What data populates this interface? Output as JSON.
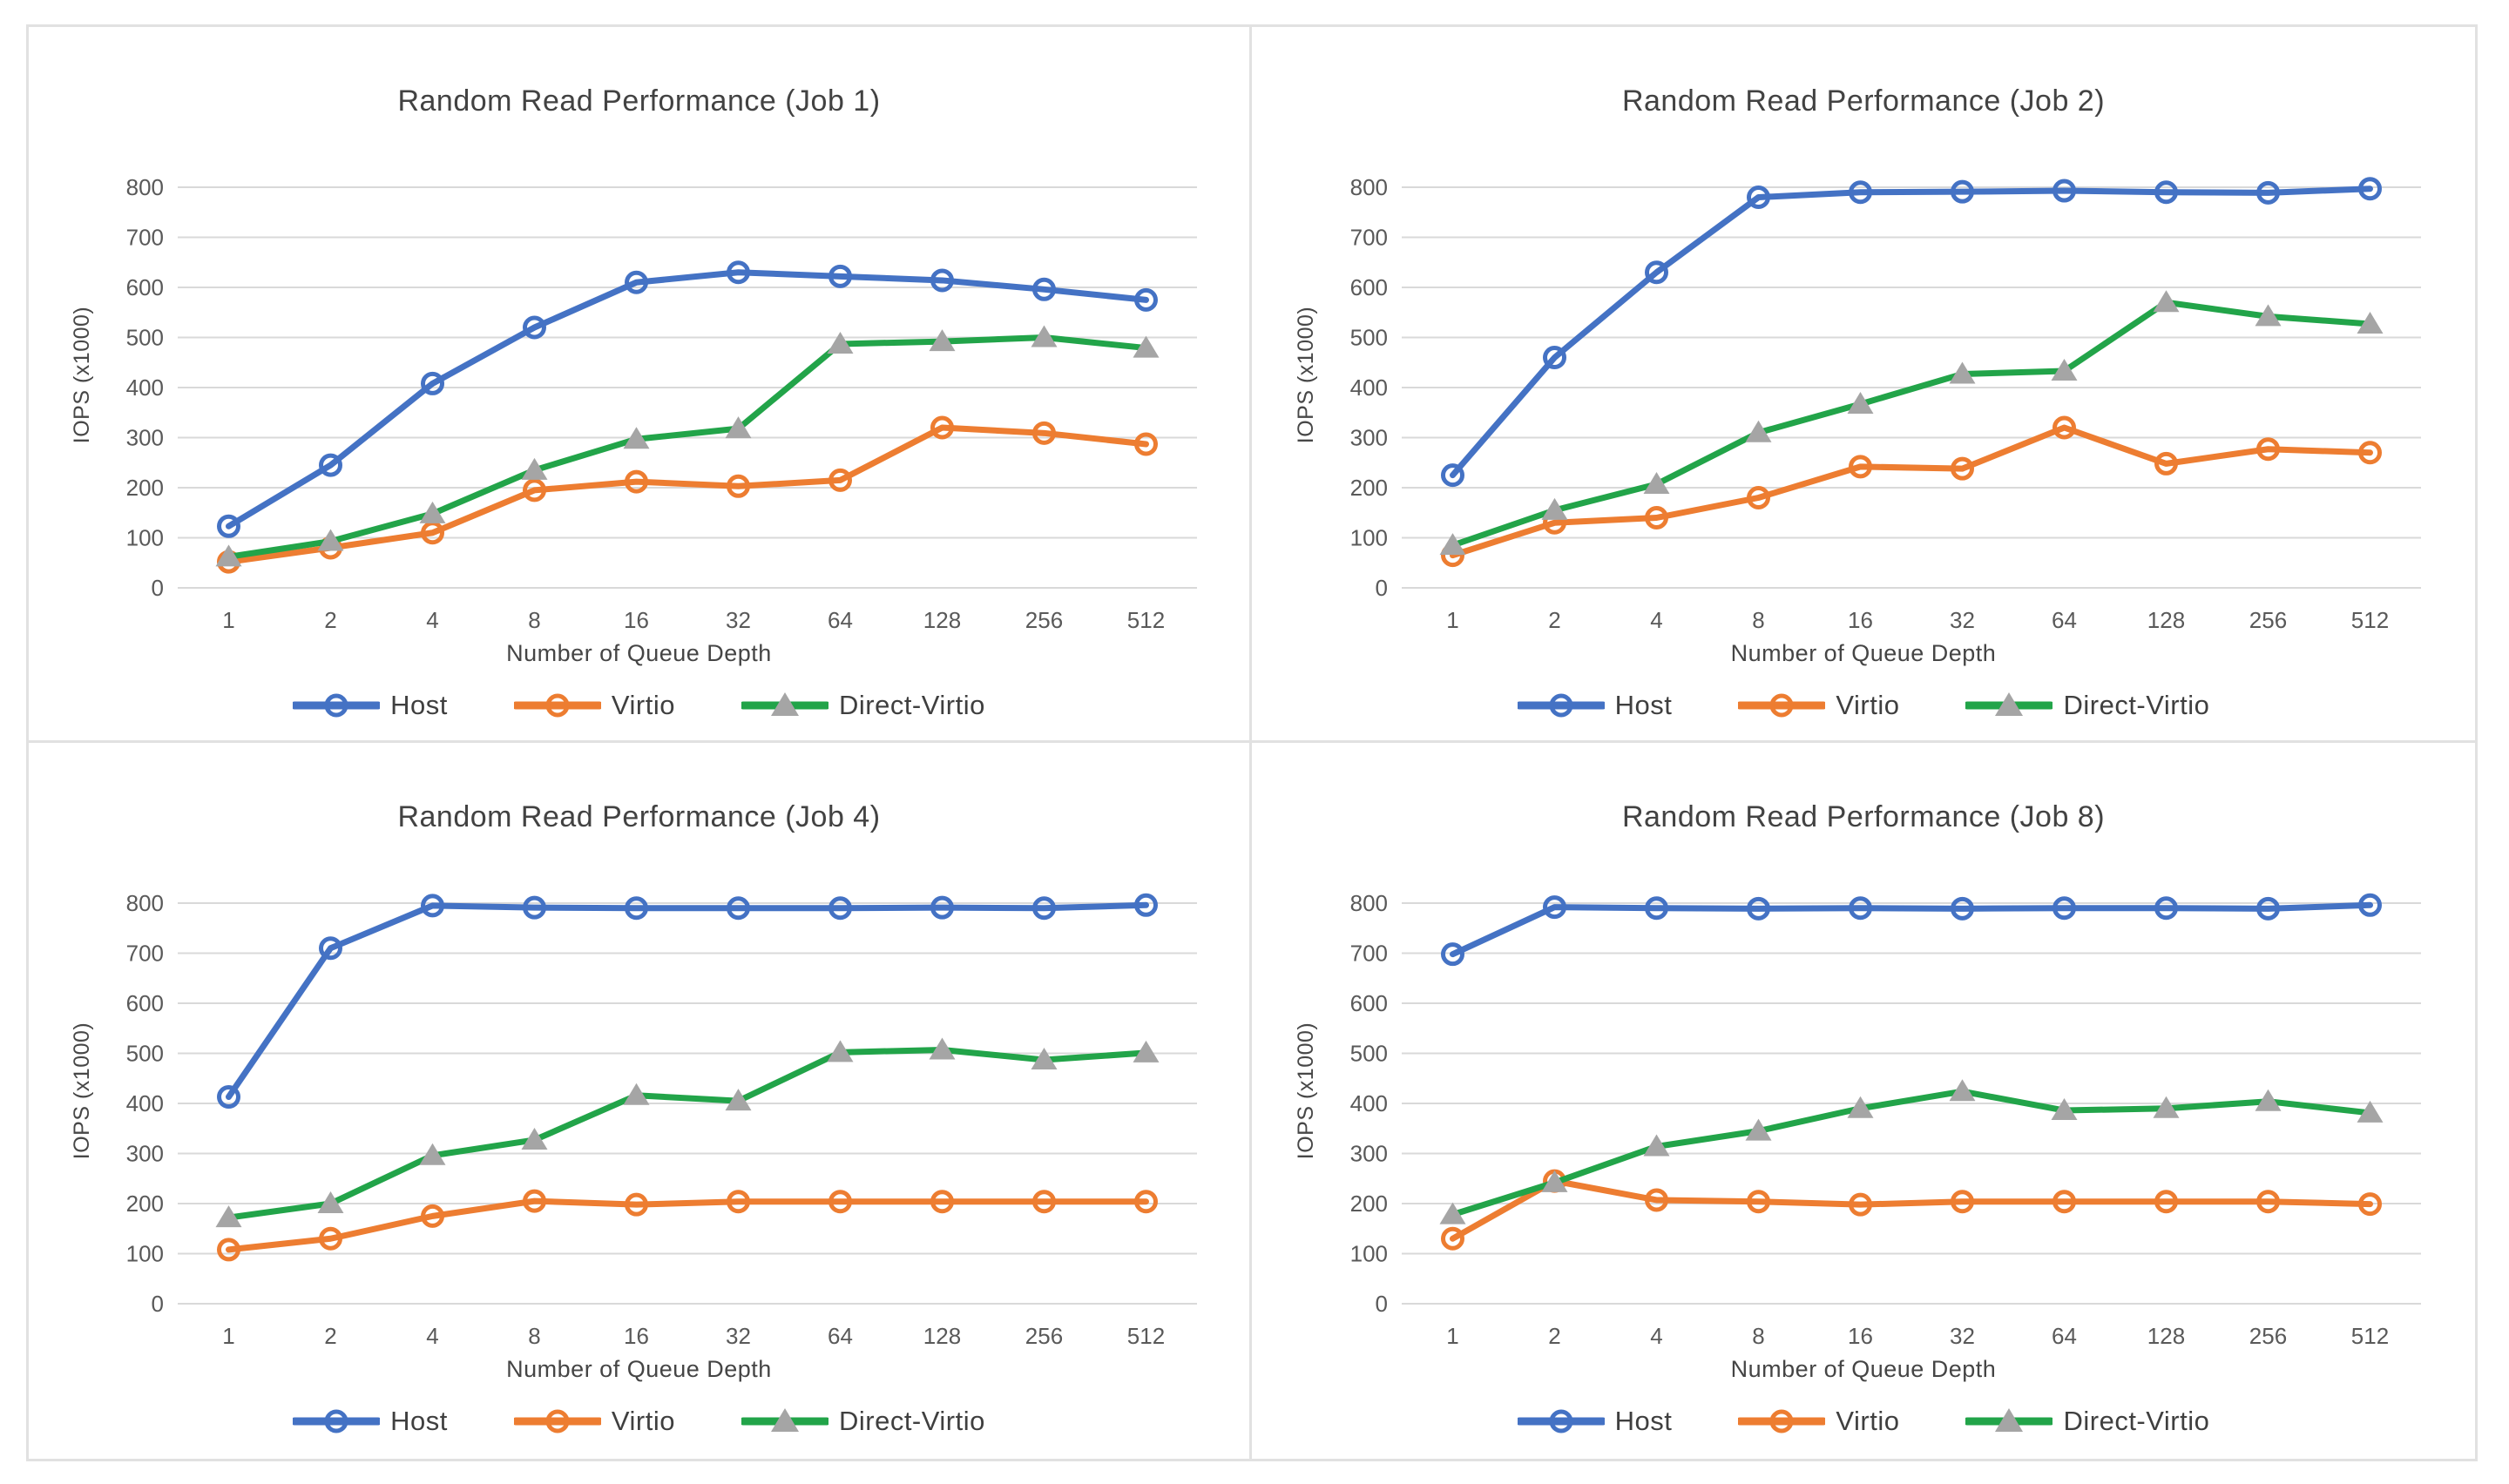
{
  "page": {
    "background": "#ffffff",
    "frame_color": "#e1e1e1",
    "gridline_color": "#d9d9d9",
    "tick_label_color": "#595959",
    "title_color": "#424242"
  },
  "chart_data": [
    {
      "type": "line",
      "title": "Random Read Performance (Job 1)",
      "xlabel": "Number of Queue Depth",
      "ylabel": "IOPS (x1000)",
      "categories": [
        "1",
        "2",
        "4",
        "8",
        "16",
        "32",
        "64",
        "128",
        "256",
        "512"
      ],
      "ylim": [
        0,
        800
      ],
      "ytick_step": 100,
      "grid": true,
      "legend_position": "bottom",
      "series": [
        {
          "name": "Host",
          "color": "#4472C4",
          "marker": "circle",
          "marker_color": "#4472C4",
          "values": [
            123,
            245,
            408,
            520,
            610,
            630,
            622,
            614,
            596,
            575
          ]
        },
        {
          "name": "Virtio",
          "color": "#ED7D31",
          "marker": "circle",
          "marker_color": "#ED7D31",
          "values": [
            52,
            80,
            110,
            195,
            212,
            203,
            215,
            320,
            309,
            287
          ]
        },
        {
          "name": "Direct-Virtio",
          "color": "#22A449",
          "marker": "triangle",
          "marker_color": "#A5A5A5",
          "values": [
            62,
            93,
            148,
            235,
            297,
            318,
            487,
            492,
            500,
            479
          ]
        }
      ]
    },
    {
      "type": "line",
      "title": "Random Read Performance (Job 2)",
      "xlabel": "Number of Queue Depth",
      "ylabel": "IOPS (x1000)",
      "categories": [
        "1",
        "2",
        "4",
        "8",
        "16",
        "32",
        "64",
        "128",
        "256",
        "512"
      ],
      "ylim": [
        0,
        800
      ],
      "ytick_step": 100,
      "grid": true,
      "legend_position": "bottom",
      "series": [
        {
          "name": "Host",
          "color": "#4472C4",
          "marker": "circle",
          "marker_color": "#4472C4",
          "values": [
            225,
            460,
            630,
            780,
            790,
            791,
            793,
            790,
            789,
            797
          ]
        },
        {
          "name": "Virtio",
          "color": "#ED7D31",
          "marker": "circle",
          "marker_color": "#ED7D31",
          "values": [
            65,
            130,
            140,
            180,
            242,
            238,
            320,
            248,
            277,
            270
          ]
        },
        {
          "name": "Direct-Virtio",
          "color": "#22A449",
          "marker": "triangle",
          "marker_color": "#A5A5A5",
          "values": [
            85,
            155,
            207,
            310,
            367,
            427,
            433,
            570,
            542,
            527
          ]
        }
      ]
    },
    {
      "type": "line",
      "title": "Random Read Performance (Job 4)",
      "xlabel": "Number of Queue Depth",
      "ylabel": "IOPS (x1000)",
      "categories": [
        "1",
        "2",
        "4",
        "8",
        "16",
        "32",
        "64",
        "128",
        "256",
        "512"
      ],
      "ylim": [
        0,
        800
      ],
      "ytick_step": 100,
      "grid": true,
      "legend_position": "bottom",
      "series": [
        {
          "name": "Host",
          "color": "#4472C4",
          "marker": "circle",
          "marker_color": "#4472C4",
          "values": [
            413,
            710,
            795,
            791,
            790,
            790,
            790,
            791,
            790,
            796
          ]
        },
        {
          "name": "Virtio",
          "color": "#ED7D31",
          "marker": "circle",
          "marker_color": "#ED7D31",
          "values": [
            108,
            130,
            175,
            205,
            198,
            204,
            204,
            204,
            204,
            204
          ]
        },
        {
          "name": "Direct-Virtio",
          "color": "#22A449",
          "marker": "triangle",
          "marker_color": "#A5A5A5",
          "values": [
            172,
            200,
            296,
            327,
            416,
            405,
            502,
            507,
            487,
            501
          ]
        }
      ]
    },
    {
      "type": "line",
      "title": "Random Read Performance (Job 8)",
      "xlabel": "Number of Queue Depth",
      "ylabel": "IOPS (x1000)",
      "categories": [
        "1",
        "2",
        "4",
        "8",
        "16",
        "32",
        "64",
        "128",
        "256",
        "512"
      ],
      "ylim": [
        0,
        800
      ],
      "ytick_step": 100,
      "grid": true,
      "legend_position": "bottom",
      "series": [
        {
          "name": "Host",
          "color": "#4472C4",
          "marker": "circle",
          "marker_color": "#4472C4",
          "values": [
            698,
            792,
            790,
            789,
            790,
            789,
            790,
            790,
            789,
            796
          ]
        },
        {
          "name": "Virtio",
          "color": "#ED7D31",
          "marker": "circle",
          "marker_color": "#ED7D31",
          "values": [
            130,
            245,
            207,
            204,
            198,
            204,
            204,
            204,
            204,
            199
          ]
        },
        {
          "name": "Direct-Virtio",
          "color": "#22A449",
          "marker": "triangle",
          "marker_color": "#A5A5A5",
          "values": [
            178,
            242,
            314,
            345,
            390,
            424,
            386,
            390,
            404,
            381
          ]
        }
      ]
    }
  ]
}
